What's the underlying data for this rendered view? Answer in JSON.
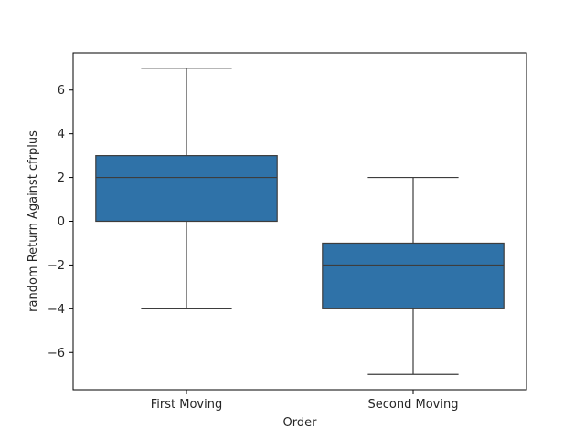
{
  "chart_data": {
    "type": "box",
    "title": "",
    "xlabel": "Order",
    "ylabel": "random Return Against cfrplus",
    "categories": [
      "First Moving",
      "Second Moving"
    ],
    "boxes": [
      {
        "category": "First Moving",
        "whisker_low": -4,
        "q1": 0,
        "median": 2,
        "q3": 3,
        "whisker_high": 7
      },
      {
        "category": "Second Moving",
        "whisker_low": -7,
        "q1": -4,
        "median": -2,
        "q3": -1,
        "whisker_high": 2
      }
    ],
    "ylim": [
      -7.7,
      7.7
    ],
    "yticks": [
      -6,
      -4,
      -2,
      0,
      2,
      4,
      6
    ],
    "grid": false,
    "box_color": "#2f72a8",
    "line_color": "#3d3d3d"
  }
}
